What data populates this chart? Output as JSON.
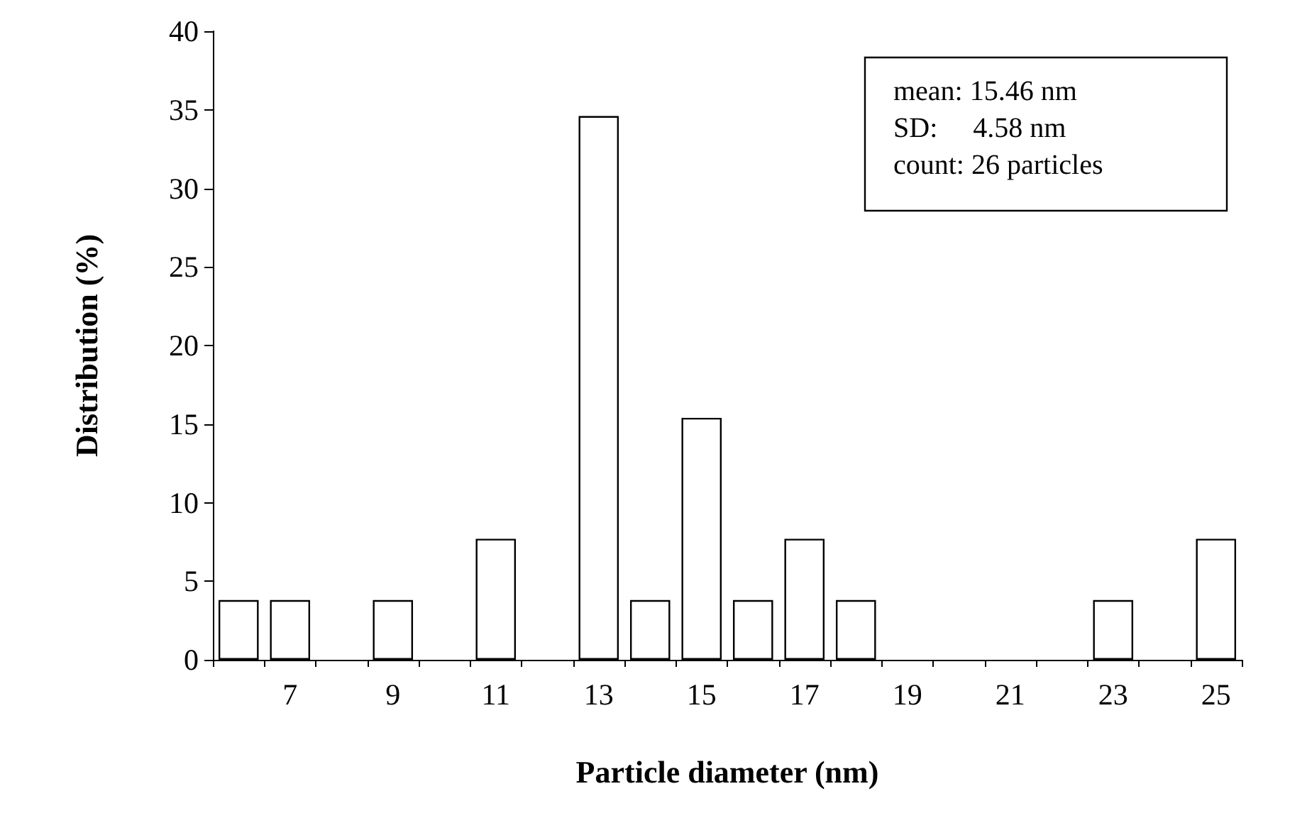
{
  "chart_data": {
    "type": "bar",
    "xlabel": "Particle diameter (nm)",
    "ylabel": "Distribution (%)",
    "categories": [
      null,
      "7",
      null,
      "9",
      null,
      "11",
      null,
      "13",
      null,
      "15",
      null,
      "17",
      null,
      "19",
      null,
      "21",
      null,
      "23",
      null,
      "25"
    ],
    "values": [
      3.8,
      3.8,
      0,
      3.8,
      0,
      7.7,
      0,
      34.6,
      3.8,
      15.4,
      3.8,
      7.7,
      3.8,
      0,
      0,
      0,
      0,
      3.8,
      0,
      7.7
    ],
    "color": "#ffffff",
    "ylim": [
      0,
      40
    ],
    "yticks": [
      0,
      5,
      10,
      15,
      20,
      25,
      30,
      35,
      40
    ],
    "grid": false,
    "annotations": [
      "mean: 15.46 nm",
      "SD:     4.58 nm",
      "count: 26 particles"
    ]
  }
}
